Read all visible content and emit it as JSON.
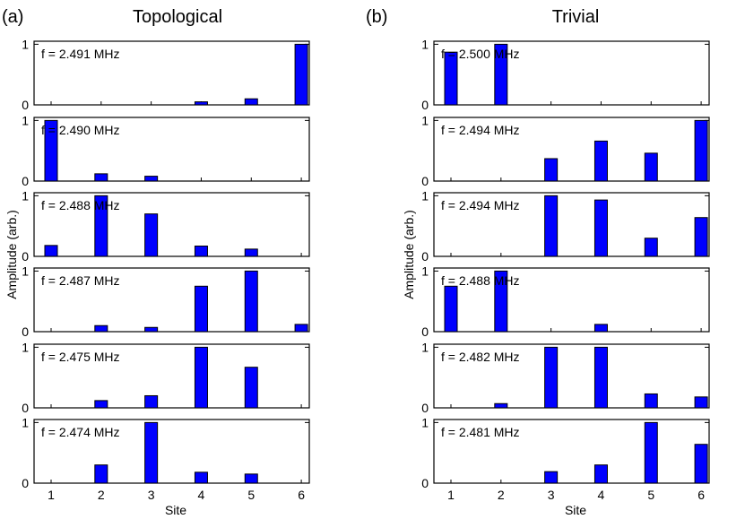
{
  "columns": [
    {
      "tag": "(a)",
      "title": "Topological"
    },
    {
      "tag": "(b)",
      "title": "Trivial"
    }
  ],
  "shared_axes": {
    "ylabel": "Amplitude (arb.)",
    "xlabel": "Site",
    "x_ticks": [
      "1",
      "2",
      "3",
      "4",
      "5",
      "6"
    ],
    "y_ticks": [
      "0",
      "1"
    ]
  },
  "bar_color": "#0000ff",
  "chart_data": [
    {
      "type": "bar",
      "panel": "Topological",
      "annotation": "f = 2.491 MHz",
      "categories": [
        "1",
        "2",
        "3",
        "4",
        "5",
        "6"
      ],
      "values": [
        0.0,
        0.0,
        0.0,
        0.05,
        0.1,
        1.0
      ],
      "ylim": [
        0,
        1.05
      ]
    },
    {
      "type": "bar",
      "panel": "Topological",
      "annotation": "f = 2.490 MHz",
      "categories": [
        "1",
        "2",
        "3",
        "4",
        "5",
        "6"
      ],
      "values": [
        1.0,
        0.12,
        0.08,
        0.0,
        0.0,
        0.0
      ],
      "ylim": [
        0,
        1.05
      ]
    },
    {
      "type": "bar",
      "panel": "Topological",
      "annotation": "f = 2.488 MHz",
      "categories": [
        "1",
        "2",
        "3",
        "4",
        "5",
        "6"
      ],
      "values": [
        0.18,
        1.0,
        0.7,
        0.17,
        0.12,
        0.0
      ],
      "ylim": [
        0,
        1.05
      ]
    },
    {
      "type": "bar",
      "panel": "Topological",
      "annotation": "f = 2.487 MHz",
      "categories": [
        "1",
        "2",
        "3",
        "4",
        "5",
        "6"
      ],
      "values": [
        0.0,
        0.1,
        0.07,
        0.75,
        1.0,
        0.12
      ],
      "ylim": [
        0,
        1.05
      ]
    },
    {
      "type": "bar",
      "panel": "Topological",
      "annotation": "f = 2.475 MHz",
      "categories": [
        "1",
        "2",
        "3",
        "4",
        "5",
        "6"
      ],
      "values": [
        0.0,
        0.12,
        0.2,
        1.0,
        0.67,
        0.0
      ],
      "ylim": [
        0,
        1.05
      ]
    },
    {
      "type": "bar",
      "panel": "Topological",
      "annotation": "f = 2.474 MHz",
      "categories": [
        "1",
        "2",
        "3",
        "4",
        "5",
        "6"
      ],
      "values": [
        0.0,
        0.3,
        1.0,
        0.18,
        0.15,
        0.0
      ],
      "ylim": [
        0,
        1.05
      ]
    },
    {
      "type": "bar",
      "panel": "Trivial",
      "annotation": "f = 2.500 MHz",
      "categories": [
        "1",
        "2",
        "3",
        "4",
        "5",
        "6"
      ],
      "values": [
        0.87,
        1.0,
        0.0,
        0.0,
        0.0,
        0.0
      ],
      "ylim": [
        0,
        1.05
      ]
    },
    {
      "type": "bar",
      "panel": "Trivial",
      "annotation": "f = 2.494 MHz",
      "categories": [
        "1",
        "2",
        "3",
        "4",
        "5",
        "6"
      ],
      "values": [
        0.0,
        0.0,
        0.37,
        0.66,
        0.46,
        1.0
      ],
      "ylim": [
        0,
        1.05
      ]
    },
    {
      "type": "bar",
      "panel": "Trivial",
      "annotation": "f = 2.494 MHz",
      "categories": [
        "1",
        "2",
        "3",
        "4",
        "5",
        "6"
      ],
      "values": [
        0.0,
        0.0,
        1.0,
        0.93,
        0.3,
        0.64
      ],
      "ylim": [
        0,
        1.05
      ]
    },
    {
      "type": "bar",
      "panel": "Trivial",
      "annotation": "f = 2.488 MHz",
      "categories": [
        "1",
        "2",
        "3",
        "4",
        "5",
        "6"
      ],
      "values": [
        0.75,
        1.0,
        0.0,
        0.12,
        0.0,
        0.0
      ],
      "ylim": [
        0,
        1.05
      ]
    },
    {
      "type": "bar",
      "panel": "Trivial",
      "annotation": "f = 2.482 MHz",
      "categories": [
        "1",
        "2",
        "3",
        "4",
        "5",
        "6"
      ],
      "values": [
        0.0,
        0.07,
        1.0,
        1.0,
        0.23,
        0.18
      ],
      "ylim": [
        0,
        1.05
      ]
    },
    {
      "type": "bar",
      "panel": "Trivial",
      "annotation": "f = 2.481 MHz",
      "categories": [
        "1",
        "2",
        "3",
        "4",
        "5",
        "6"
      ],
      "values": [
        0.0,
        0.0,
        0.19,
        0.3,
        1.0,
        0.64
      ],
      "ylim": [
        0,
        1.05
      ]
    }
  ]
}
